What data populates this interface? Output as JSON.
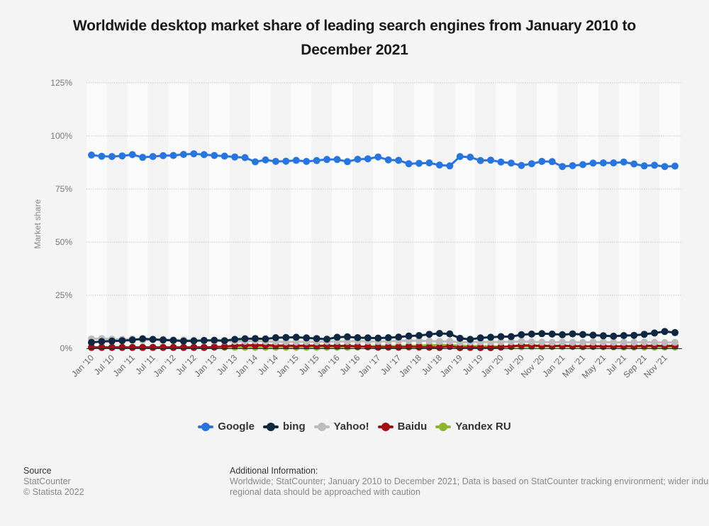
{
  "chart_data": {
    "type": "line",
    "title": "Worldwide desktop market share of leading search engines from January 2010 to December 2021",
    "xlabel": "",
    "ylabel": "Market share",
    "ylim": [
      0,
      125
    ],
    "yticks": [
      "0%",
      "25%",
      "50%",
      "75%",
      "100%",
      "125%"
    ],
    "ytick_values": [
      0,
      25,
      50,
      75,
      100,
      125
    ],
    "grid": true,
    "legend_position": "bottom-center",
    "point_count": 58,
    "xtick_labels": [
      {
        "index": 0,
        "label": "Jan '10"
      },
      {
        "index": 2,
        "label": "Jul '10"
      },
      {
        "index": 4,
        "label": "Jan '11"
      },
      {
        "index": 6,
        "label": "Jul '11"
      },
      {
        "index": 8,
        "label": "Jan '12"
      },
      {
        "index": 10,
        "label": "Jul '12"
      },
      {
        "index": 12,
        "label": "Jan '13"
      },
      {
        "index": 14,
        "label": "Jul '13"
      },
      {
        "index": 16,
        "label": "Jan '14"
      },
      {
        "index": 18,
        "label": "Jul '14"
      },
      {
        "index": 20,
        "label": "Jan '15"
      },
      {
        "index": 22,
        "label": "Jul '15"
      },
      {
        "index": 24,
        "label": "Jan '16"
      },
      {
        "index": 26,
        "label": "Jul '16"
      },
      {
        "index": 28,
        "label": "Jan '17"
      },
      {
        "index": 30,
        "label": "Jul '17"
      },
      {
        "index": 32,
        "label": "Jan '18"
      },
      {
        "index": 34,
        "label": "Jul '18"
      },
      {
        "index": 36,
        "label": "Jan '19"
      },
      {
        "index": 38,
        "label": "Jul '19"
      },
      {
        "index": 40,
        "label": "Jan '20"
      },
      {
        "index": 42,
        "label": "Jul '20"
      },
      {
        "index": 44,
        "label": "Nov '20"
      },
      {
        "index": 46,
        "label": "Jan '21"
      },
      {
        "index": 48,
        "label": "Mar '21"
      },
      {
        "index": 50,
        "label": "May '21"
      },
      {
        "index": 52,
        "label": "Jul '21"
      },
      {
        "index": 54,
        "label": "Sep '21"
      },
      {
        "index": 56,
        "label": "Nov '21"
      }
    ],
    "series": [
      {
        "name": "Google",
        "color": "#2876dd",
        "values": [
          91.0,
          90.4,
          90.3,
          90.6,
          91.2,
          89.9,
          90.3,
          90.7,
          90.8,
          91.3,
          91.6,
          91.2,
          90.8,
          90.5,
          90.1,
          89.8,
          87.8,
          88.7,
          88.0,
          88.1,
          88.5,
          88.0,
          88.4,
          88.9,
          88.9,
          87.9,
          89.0,
          89.2,
          90.1,
          88.7,
          88.5,
          86.9,
          87.1,
          87.3,
          86.3,
          85.9,
          90.3,
          90.0,
          88.4,
          88.6,
          87.7,
          87.2,
          86.1,
          86.9,
          88.0,
          87.9,
          85.6,
          86.0,
          86.5,
          87.2,
          87.3,
          87.3,
          87.7,
          86.8,
          85.9,
          86.2,
          85.6,
          85.8
        ]
      },
      {
        "name": "bing",
        "color": "#0f2741",
        "values": [
          2.8,
          3.2,
          3.4,
          3.6,
          3.9,
          4.5,
          4.2,
          3.9,
          3.7,
          3.4,
          3.5,
          3.7,
          3.8,
          3.6,
          4.2,
          4.5,
          4.6,
          4.4,
          5.0,
          5.1,
          5.2,
          4.9,
          4.6,
          4.3,
          5.2,
          5.4,
          5.0,
          4.9,
          4.8,
          5.0,
          5.3,
          5.8,
          6.0,
          6.6,
          7.0,
          6.8,
          4.7,
          4.2,
          4.9,
          5.2,
          5.5,
          5.5,
          6.4,
          6.7,
          6.9,
          6.7,
          6.4,
          6.8,
          6.5,
          6.2,
          5.9,
          5.7,
          6.0,
          6.1,
          6.6,
          7.2,
          7.9,
          7.4
        ]
      },
      {
        "name": "Yahoo!",
        "color": "#bcbcbc",
        "values": [
          4.4,
          4.6,
          4.3,
          4.2,
          4.4,
          3.8,
          4.1,
          4.2,
          4.0,
          3.9,
          3.8,
          3.6,
          3.6,
          3.4,
          3.3,
          3.3,
          3.5,
          3.2,
          3.1,
          3.0,
          3.0,
          3.1,
          3.0,
          3.2,
          3.3,
          3.2,
          3.4,
          3.3,
          3.2,
          3.3,
          3.5,
          3.6,
          3.5,
          3.4,
          3.2,
          3.3,
          2.8,
          2.9,
          3.0,
          2.9,
          3.0,
          3.1,
          3.2,
          3.0,
          2.9,
          2.8,
          2.9,
          2.8,
          2.8,
          2.9,
          2.9,
          2.8,
          2.8,
          2.8,
          2.9,
          2.8,
          2.7,
          2.8
        ]
      },
      {
        "name": "Baidu",
        "color": "#a30e15",
        "values": [
          0.4,
          0.4,
          0.4,
          0.4,
          0.4,
          0.4,
          0.4,
          0.4,
          0.4,
          0.4,
          0.4,
          0.4,
          0.6,
          0.8,
          1.3,
          1.5,
          1.4,
          1.5,
          1.3,
          1.3,
          1.2,
          1.3,
          1.2,
          1.2,
          1.1,
          1.2,
          0.9,
          0.7,
          0.5,
          0.6,
          0.5,
          0.7,
          0.6,
          0.5,
          0.4,
          0.9,
          0.3,
          0.4,
          0.3,
          0.3,
          0.6,
          0.9,
          1.4,
          1.3,
          1.2,
          1.1,
          1.2,
          1.1,
          1.0,
          1.0,
          1.0,
          0.9,
          1.0,
          1.0,
          1.2,
          1.2,
          1.1,
          1.2
        ]
      },
      {
        "name": "Yandex RU",
        "color": "#8cb62d",
        "values": [
          0.5,
          0.5,
          0.5,
          0.5,
          0.5,
          0.5,
          0.5,
          0.5,
          0.5,
          0.5,
          0.5,
          0.5,
          0.5,
          0.5,
          0.5,
          0.5,
          0.5,
          0.5,
          0.5,
          0.5,
          0.5,
          0.5,
          0.5,
          0.5,
          0.5,
          0.5,
          0.6,
          0.9,
          1.1,
          1.1,
          1.0,
          1.1,
          1.3,
          1.4,
          1.6,
          1.5,
          1.2,
          1.1,
          1.0,
          0.9,
          0.8,
          0.8,
          0.7,
          0.8,
          0.8,
          0.8,
          0.8,
          0.8,
          0.7,
          0.8,
          0.7,
          0.7,
          0.6,
          0.6,
          0.6,
          0.6,
          0.6,
          0.6
        ]
      }
    ]
  },
  "footer": {
    "source_heading": "Source",
    "source_lines": [
      "StatCounter",
      "© Statista 2022"
    ],
    "additional_heading": "Additional Information:",
    "additional_text": "Worldwide; StatCounter; January 2010 to December 2021; Data is based on StatCounter tracking environment; wider industry, regional data should be approached with caution"
  }
}
